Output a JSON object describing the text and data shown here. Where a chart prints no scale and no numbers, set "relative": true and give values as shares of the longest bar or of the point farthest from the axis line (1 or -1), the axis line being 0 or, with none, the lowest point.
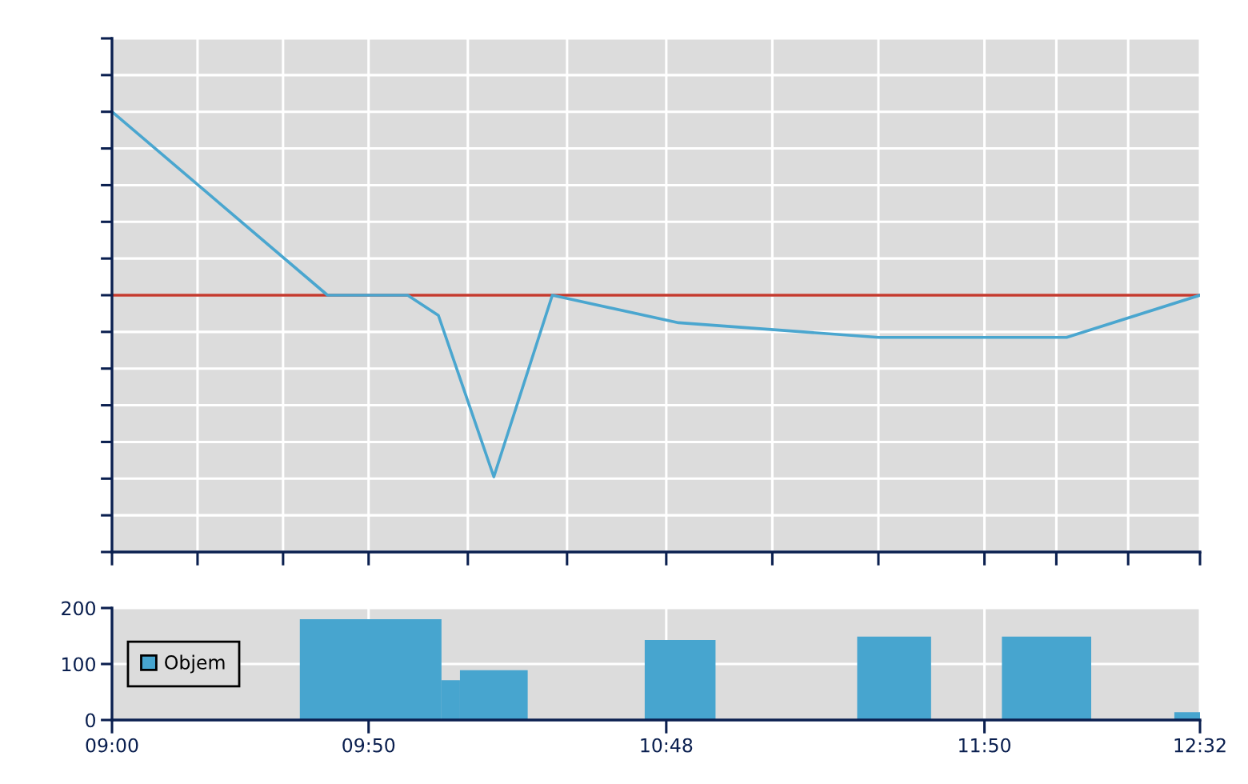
{
  "chart_data": [
    {
      "type": "line",
      "relative": true,
      "x": [
        9.0,
        9.7,
        9.96,
        10.06,
        10.24,
        10.43,
        10.84,
        11.49,
        12.1,
        12.5333
      ],
      "values": [
        1.0,
        0,
        0,
        -0.11,
        -0.99,
        0,
        -0.15,
        -0.23,
        -0.23,
        0
      ],
      "color": "#4aa6cf",
      "xlim": [
        9.0,
        12.5333
      ],
      "xticks": [
        9.0,
        9.2778,
        9.5556,
        9.8333,
        10.1556,
        10.4778,
        10.8,
        11.1444,
        11.4889,
        11.8333,
        12.0667,
        12.3,
        12.5333
      ],
      "tick_labels": false,
      "grid": true,
      "ref_lines": [
        {
          "axis": "y",
          "value": 0,
          "color": "#c43a2e"
        }
      ]
    },
    {
      "type": "histogram",
      "bins": [
        9.61,
        10.07,
        10.13,
        10.35,
        10.73,
        10.96,
        11.42,
        11.66,
        11.89,
        12.18,
        12.45,
        12.5333
      ],
      "series": [
        {
          "name": "Objem",
          "color": "#47a5cf",
          "values": [
            180,
            71,
            89,
            null,
            143,
            null,
            149,
            null,
            149,
            null,
            14
          ]
        }
      ],
      "xlim": [
        9.0,
        12.5333
      ],
      "xticks": [
        {
          "value": 9.0,
          "label": "09:00"
        },
        {
          "value": 9.8333,
          "label": "09:50"
        },
        {
          "value": 10.8,
          "label": "10:48"
        },
        {
          "value": 11.8333,
          "label": "11:50"
        },
        {
          "value": 12.5333,
          "label": "12:32"
        }
      ],
      "ylim": [
        0,
        200
      ],
      "yticks": [
        0,
        100,
        200
      ],
      "grid": true,
      "legend": "left"
    }
  ]
}
